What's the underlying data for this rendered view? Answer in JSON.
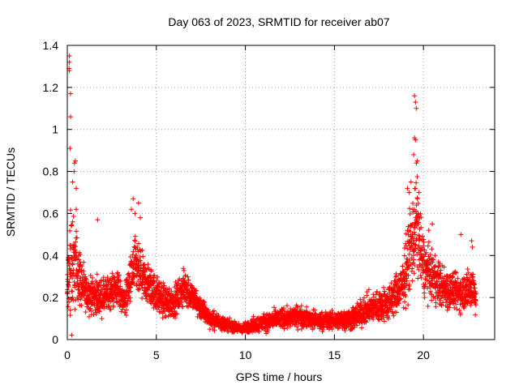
{
  "chart_data": {
    "type": "scatter",
    "title": "Day 063 of 2023, SRMTID for receiver ab07",
    "xlabel": "GPS time / hours",
    "ylabel": "SRMTID / TECUs",
    "xlim": [
      0,
      24
    ],
    "ylim": [
      0,
      1.4
    ],
    "xticks": [
      0,
      5,
      10,
      15,
      20
    ],
    "xtick_labels": [
      "0",
      "5",
      "10",
      "15",
      "20"
    ],
    "yticks": [
      0,
      0.2,
      0.4,
      0.6,
      0.8,
      1.0,
      1.2,
      1.4
    ],
    "ytick_labels": [
      "0",
      "0.2",
      "0.4",
      "0.6",
      "0.8",
      "1",
      "1.2",
      "1.4"
    ],
    "grid": true,
    "marker": "+",
    "color": "#ff0000",
    "series": [
      {
        "name": "SRMTID",
        "sample_interval_hours": 0.0125,
        "envelope": [
          {
            "x": 0.0,
            "y": 0.22,
            "spread": 0.12
          },
          {
            "x": 0.15,
            "y": 0.35,
            "spread": 0.5
          },
          {
            "x": 0.5,
            "y": 0.35,
            "spread": 0.25
          },
          {
            "x": 1.0,
            "y": 0.22,
            "spread": 0.12
          },
          {
            "x": 2.0,
            "y": 0.2,
            "spread": 0.12
          },
          {
            "x": 2.8,
            "y": 0.25,
            "spread": 0.12
          },
          {
            "x": 3.2,
            "y": 0.18,
            "spread": 0.1
          },
          {
            "x": 3.8,
            "y": 0.35,
            "spread": 0.2
          },
          {
            "x": 4.3,
            "y": 0.28,
            "spread": 0.15
          },
          {
            "x": 5.0,
            "y": 0.22,
            "spread": 0.12
          },
          {
            "x": 5.5,
            "y": 0.18,
            "spread": 0.12
          },
          {
            "x": 6.0,
            "y": 0.18,
            "spread": 0.1
          },
          {
            "x": 6.6,
            "y": 0.25,
            "spread": 0.12
          },
          {
            "x": 7.5,
            "y": 0.15,
            "spread": 0.08
          },
          {
            "x": 8.0,
            "y": 0.1,
            "spread": 0.06
          },
          {
            "x": 9.0,
            "y": 0.07,
            "spread": 0.04
          },
          {
            "x": 9.8,
            "y": 0.05,
            "spread": 0.03
          },
          {
            "x": 10.5,
            "y": 0.07,
            "spread": 0.05
          },
          {
            "x": 12.0,
            "y": 0.1,
            "spread": 0.07
          },
          {
            "x": 13.0,
            "y": 0.11,
            "spread": 0.07
          },
          {
            "x": 14.0,
            "y": 0.09,
            "spread": 0.06
          },
          {
            "x": 15.0,
            "y": 0.09,
            "spread": 0.06
          },
          {
            "x": 16.0,
            "y": 0.1,
            "spread": 0.08
          },
          {
            "x": 17.0,
            "y": 0.15,
            "spread": 0.1
          },
          {
            "x": 18.0,
            "y": 0.17,
            "spread": 0.12
          },
          {
            "x": 18.8,
            "y": 0.25,
            "spread": 0.15
          },
          {
            "x": 19.3,
            "y": 0.45,
            "spread": 0.3
          },
          {
            "x": 19.6,
            "y": 0.55,
            "spread": 0.35
          },
          {
            "x": 20.0,
            "y": 0.35,
            "spread": 0.2
          },
          {
            "x": 20.5,
            "y": 0.3,
            "spread": 0.15
          },
          {
            "x": 21.0,
            "y": 0.25,
            "spread": 0.15
          },
          {
            "x": 22.0,
            "y": 0.22,
            "spread": 0.12
          },
          {
            "x": 22.8,
            "y": 0.25,
            "spread": 0.15
          },
          {
            "x": 22.95,
            "y": 0.2,
            "spread": 0.1
          }
        ],
        "highlights": [
          {
            "x": 0.12,
            "y": 1.35
          },
          {
            "x": 0.12,
            "y": 1.32
          },
          {
            "x": 0.1,
            "y": 1.29
          },
          {
            "x": 0.11,
            "y": 1.28
          },
          {
            "x": 0.18,
            "y": 1.17
          },
          {
            "x": 0.18,
            "y": 1.06
          },
          {
            "x": 0.15,
            "y": 0.91
          },
          {
            "x": 0.4,
            "y": 0.84
          },
          {
            "x": 0.45,
            "y": 0.85
          },
          {
            "x": 0.38,
            "y": 0.8
          },
          {
            "x": 0.3,
            "y": 0.75
          },
          {
            "x": 0.5,
            "y": 0.72
          },
          {
            "x": 0.5,
            "y": 0.62
          },
          {
            "x": 0.3,
            "y": 0.56
          },
          {
            "x": 3.7,
            "y": 0.67
          },
          {
            "x": 4.0,
            "y": 0.65
          },
          {
            "x": 3.8,
            "y": 0.6
          },
          {
            "x": 4.1,
            "y": 0.58
          },
          {
            "x": 3.6,
            "y": 0.62
          },
          {
            "x": 19.5,
            "y": 1.16
          },
          {
            "x": 19.55,
            "y": 1.13
          },
          {
            "x": 19.6,
            "y": 1.1
          },
          {
            "x": 19.5,
            "y": 0.96
          },
          {
            "x": 19.55,
            "y": 0.95
          },
          {
            "x": 19.45,
            "y": 0.88
          },
          {
            "x": 19.6,
            "y": 0.84
          },
          {
            "x": 19.65,
            "y": 0.85
          },
          {
            "x": 19.3,
            "y": 0.75
          },
          {
            "x": 19.2,
            "y": 0.7
          },
          {
            "x": 19.1,
            "y": 0.72
          },
          {
            "x": 19.75,
            "y": 0.7
          },
          {
            "x": 19.4,
            "y": 0.62
          },
          {
            "x": 19.6,
            "y": 0.6
          },
          {
            "x": 20.5,
            "y": 0.55
          },
          {
            "x": 20.3,
            "y": 0.52
          },
          {
            "x": 22.1,
            "y": 0.5
          },
          {
            "x": 22.7,
            "y": 0.47
          },
          {
            "x": 22.75,
            "y": 0.44
          },
          {
            "x": 1.7,
            "y": 0.57
          }
        ]
      }
    ]
  }
}
